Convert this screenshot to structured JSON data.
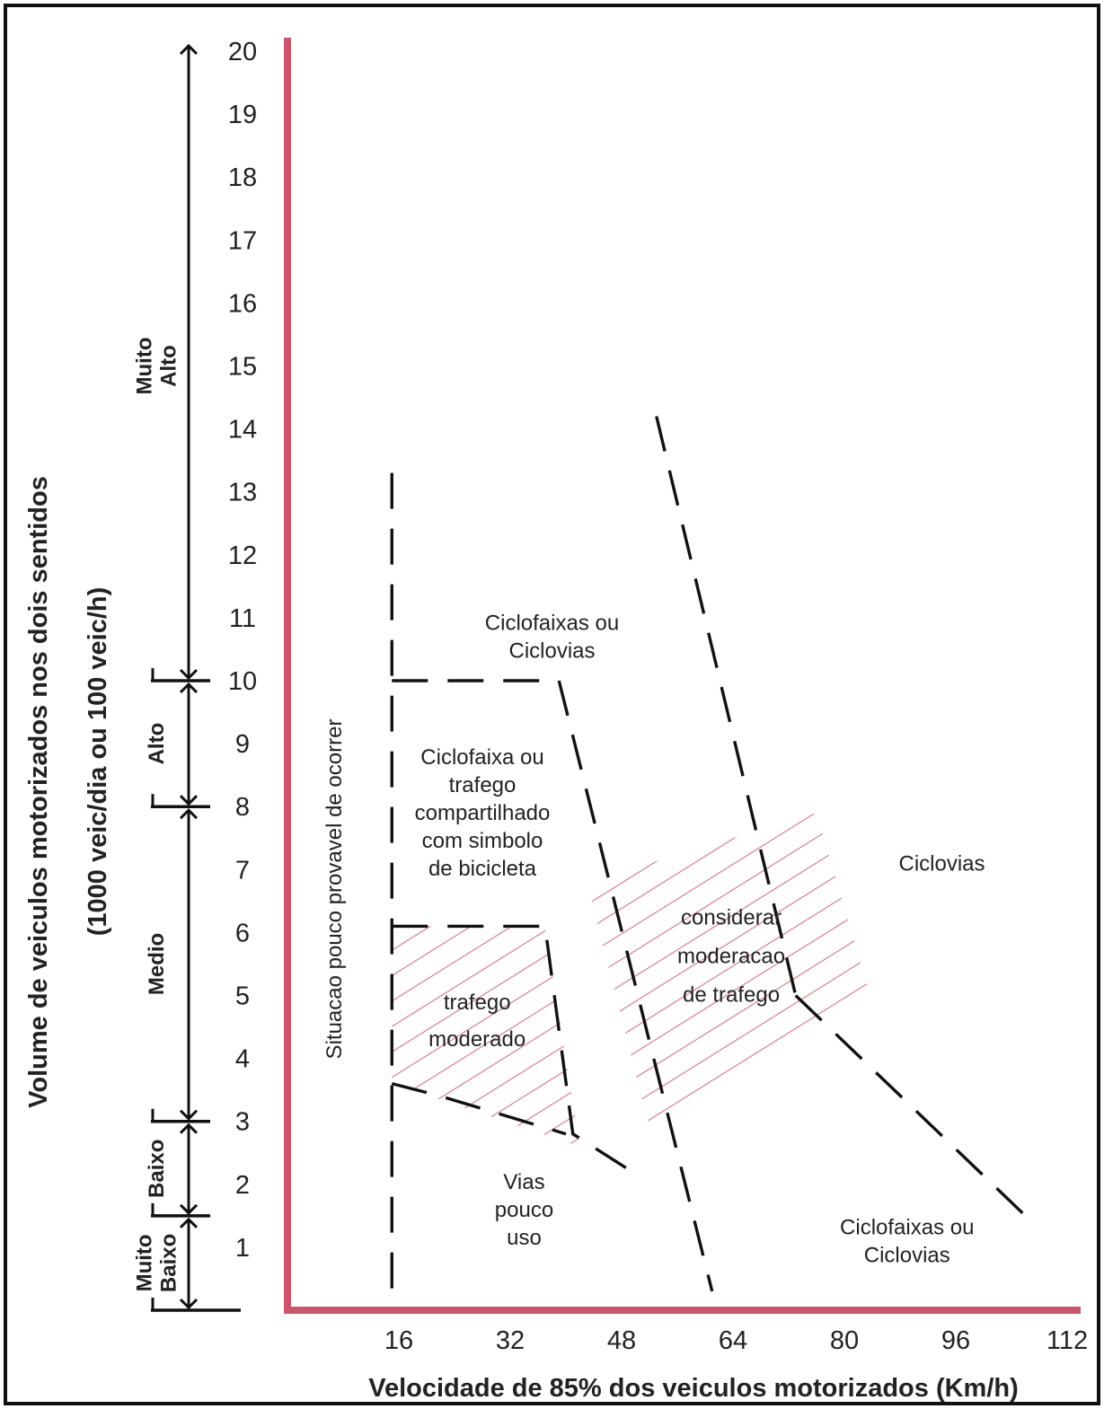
{
  "chart_data": {
    "type": "area",
    "x_axis": {
      "label": "Velocidade de 85% dos veiculos motorizados (Km/h)",
      "ticks": [
        "16",
        "32",
        "48",
        "64",
        "80",
        "96",
        "112"
      ],
      "range": [
        0,
        112
      ]
    },
    "y_axis": {
      "label_line1": "Volume de veiculos motorizados nos dois sentidos",
      "label_line2": "(1000 veic/dia ou 100 veic/h)",
      "ticks": [
        "1",
        "2",
        "3",
        "4",
        "5",
        "6",
        "7",
        "8",
        "9",
        "10",
        "11",
        "12",
        "13",
        "14",
        "15",
        "16",
        "17",
        "18",
        "19",
        "20"
      ],
      "range": [
        0,
        20
      ]
    },
    "volume_categories": [
      {
        "label_lines": [
          "Muito",
          "Baixo"
        ],
        "from": 0,
        "to": 1.5
      },
      {
        "label_lines": [
          "Baixo"
        ],
        "from": 1.5,
        "to": 3
      },
      {
        "label_lines": [
          "Medio"
        ],
        "from": 3,
        "to": 8
      },
      {
        "label_lines": [
          "Alto"
        ],
        "from": 8,
        "to": 10
      },
      {
        "label_lines": [
          "Muito",
          "Alto"
        ],
        "from": 10,
        "to": 20
      }
    ],
    "boundaries": [
      {
        "id": "min-speed",
        "points": [
          [
            15,
            13.3
          ],
          [
            15,
            0
          ]
        ]
      },
      {
        "id": "high-volume",
        "points": [
          [
            15,
            10
          ],
          [
            39,
            10
          ],
          [
            61,
            0.3
          ]
        ]
      },
      {
        "id": "moderate-traffic",
        "points": [
          [
            15,
            6.1
          ],
          [
            37,
            6.1
          ],
          [
            41,
            2.8
          ],
          [
            49.5,
            2.2
          ]
        ]
      },
      {
        "id": "low-volume",
        "points": [
          [
            15,
            3.6
          ],
          [
            22,
            3.4
          ],
          [
            40,
            2.8
          ]
        ]
      },
      {
        "id": "high-speed",
        "points": [
          [
            53,
            14.2
          ],
          [
            73,
            5
          ]
        ]
      },
      {
        "id": "high-speed-tail",
        "points": [
          [
            73,
            5
          ],
          [
            106,
            1.5
          ]
        ]
      }
    ],
    "zones": [
      {
        "id": "trafego-moderado",
        "hatched": true,
        "lines": [
          "trafego",
          "moderado"
        ],
        "polygon": [
          [
            15,
            6.1
          ],
          [
            37,
            6.1
          ],
          [
            42,
            2.6
          ],
          [
            15,
            3.6
          ]
        ]
      },
      {
        "id": "considerar-moderacao",
        "hatched": true,
        "lines": [
          "considerar",
          "moderacao",
          "de trafego"
        ],
        "polygon": [
          [
            43,
            6.8
          ],
          [
            76,
            7.9
          ],
          [
            84,
            4.9
          ],
          [
            52,
            2.9
          ]
        ]
      },
      {
        "id": "ciclofaixas-ciclovias-top",
        "hatched": false,
        "lines": [
          "Ciclofaixas ou",
          "Ciclovias"
        ],
        "anchor": [
          38,
          10.7
        ]
      },
      {
        "id": "ciclofaixa-compartilhado",
        "hatched": false,
        "lines": [
          "Ciclofaixa ou",
          "trafego",
          "compartilhado",
          "com simbolo",
          "de bicicleta"
        ],
        "anchor": [
          28,
          7.9
        ]
      },
      {
        "id": "ciclovias",
        "hatched": false,
        "lines": [
          "Ciclovias"
        ],
        "anchor": [
          94,
          7.1
        ]
      },
      {
        "id": "vias-pouco-uso",
        "hatched": false,
        "lines": [
          "Vias",
          "pouco",
          "uso"
        ],
        "anchor": [
          34,
          1.6
        ]
      },
      {
        "id": "ciclofaixas-ciclovias-bottom",
        "hatched": false,
        "lines": [
          "Ciclofaixas ou",
          "Ciclovias"
        ],
        "anchor": [
          89,
          1.1
        ]
      }
    ],
    "vertical_note": "Situacao pouco provavel de ocorrer",
    "colors": {
      "axes": "#c8576b",
      "hatch": "#d2778a",
      "boundary": "#111111",
      "frame": "#111111"
    },
    "grid": false,
    "legend": "none"
  }
}
